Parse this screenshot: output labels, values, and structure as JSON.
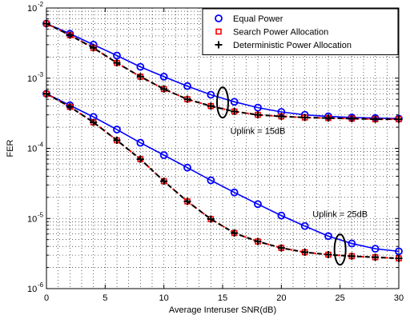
{
  "chart_data": {
    "type": "line",
    "title": "",
    "xlabel": "Average Interuser SNR(dB)",
    "ylabel": "FER",
    "xlim": [
      0,
      30
    ],
    "ylim": [
      1e-06,
      0.01
    ],
    "yscale": "log",
    "grid": true,
    "legend_position": "top-right",
    "x_ticks": [
      0,
      5,
      10,
      15,
      20,
      25,
      30
    ],
    "x_tick_labels": [
      "0",
      "5",
      "10",
      "15",
      "20",
      "25",
      "30"
    ],
    "y_ticks": [
      {
        "value": 1e-06,
        "base": "10",
        "exp": "-6"
      },
      {
        "value": 1e-05,
        "base": "10",
        "exp": "-5"
      },
      {
        "value": 0.0001,
        "base": "10",
        "exp": "-4"
      },
      {
        "value": 0.001,
        "base": "10",
        "exp": "-3"
      },
      {
        "value": 0.01,
        "base": "10",
        "exp": "-2"
      }
    ],
    "x": [
      0,
      2,
      4,
      6,
      8,
      10,
      12,
      14,
      16,
      18,
      20,
      22,
      24,
      26,
      28,
      30
    ],
    "series": [
      {
        "name": "Equal Power",
        "group": "Uplink = 15dB",
        "color": "#0000ff",
        "marker": "circle",
        "line": "solid",
        "values": [
          0.006,
          0.0043,
          0.003,
          0.0021,
          0.00145,
          0.00105,
          0.00077,
          0.00058,
          0.00046,
          0.00038,
          0.00033,
          0.0003,
          0.000285,
          0.000275,
          0.00027,
          0.000265
        ]
      },
      {
        "name": "Search Power Allocation",
        "group": "Uplink = 15dB",
        "color": "#ff0000",
        "marker": "square",
        "line": "dashed",
        "values": [
          0.006,
          0.0041,
          0.0027,
          0.00165,
          0.00105,
          0.0007,
          0.0005,
          0.0004,
          0.000335,
          0.0003,
          0.000285,
          0.000275,
          0.00027,
          0.000265,
          0.00026,
          0.00026
        ]
      },
      {
        "name": "Deterministic Power Allocation",
        "group": "Uplink = 15dB",
        "color": "#000000",
        "marker": "plus",
        "line": "dashed",
        "values": [
          0.006,
          0.0041,
          0.0027,
          0.00165,
          0.00105,
          0.0007,
          0.0005,
          0.0004,
          0.000335,
          0.0003,
          0.000285,
          0.000275,
          0.00027,
          0.000265,
          0.00026,
          0.00026
        ]
      },
      {
        "name": "Equal Power",
        "group": "Uplink = 25dB",
        "color": "#0000ff",
        "marker": "circle",
        "line": "solid",
        "values": [
          0.0006,
          0.00041,
          0.00028,
          0.000185,
          0.00012,
          8e-05,
          5.3e-05,
          3.5e-05,
          2.35e-05,
          1.6e-05,
          1.1e-05,
          7.8e-06,
          5.6e-06,
          4.4e-06,
          3.7e-06,
          3.4e-06
        ]
      },
      {
        "name": "Search Power Allocation",
        "group": "Uplink = 25dB",
        "color": "#ff0000",
        "marker": "square",
        "line": "dashed",
        "values": [
          0.0006,
          0.00039,
          0.000235,
          0.00013,
          7e-05,
          3.4e-05,
          1.75e-05,
          9.8e-06,
          6.2e-06,
          4.7e-06,
          3.8e-06,
          3.3e-06,
          3.05e-06,
          2.9e-06,
          2.8e-06,
          2.7e-06
        ]
      },
      {
        "name": "Deterministic Power Allocation",
        "group": "Uplink = 25dB",
        "color": "#000000",
        "marker": "plus",
        "line": "dashed",
        "values": [
          0.0006,
          0.00039,
          0.000235,
          0.00013,
          7e-05,
          3.4e-05,
          1.75e-05,
          9.8e-06,
          6.2e-06,
          4.7e-06,
          3.8e-06,
          3.3e-06,
          3.05e-06,
          2.9e-06,
          2.8e-06,
          2.7e-06
        ]
      }
    ],
    "legend": [
      {
        "label": "Equal Power",
        "marker": "circle",
        "color": "#0000ff"
      },
      {
        "label": "Search Power Allocation",
        "marker": "square",
        "color": "#ff0000"
      },
      {
        "label": "Deterministic Power Allocation",
        "marker": "plus",
        "color": "#000000"
      }
    ],
    "annotations": [
      {
        "text": "Uplink = 15dB",
        "x": 15,
        "y": 0.00045,
        "label_x": 18,
        "label_y": 0.00016
      },
      {
        "text": "Uplink = 25dB",
        "x": 25,
        "y": 3.6e-06,
        "label_x": 25,
        "label_y": 1.05e-05
      }
    ]
  }
}
